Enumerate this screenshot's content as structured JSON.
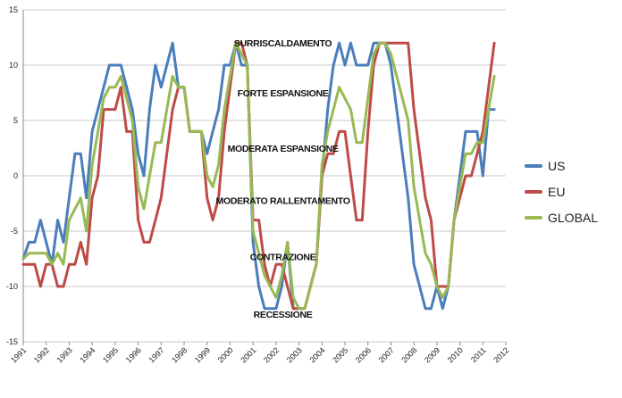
{
  "chart_data": {
    "type": "line",
    "title": "",
    "xlabel": "",
    "ylabel": "",
    "ylim": [
      -15,
      15
    ],
    "yticks": [
      -15,
      -10,
      -5,
      0,
      5,
      10,
      15
    ],
    "xlim": [
      1991,
      2012
    ],
    "xticks": [
      "1991",
      "1992",
      "1993",
      "1994",
      "1995",
      "1996",
      "1997",
      "1998",
      "1999",
      "2000",
      "2001",
      "2002",
      "2003",
      "2004",
      "2005",
      "2006",
      "2007",
      "2008",
      "2009",
      "2010",
      "2011",
      "2012"
    ],
    "grid": "horizontal",
    "legend_position": "right",
    "annotations": [
      {
        "text": "SURRISCALDAMENTO",
        "y": 12
      },
      {
        "text": "FORTE ESPANSIONE",
        "y": 7.5
      },
      {
        "text": "MODERATA ESPANSIONE",
        "y": 2.5
      },
      {
        "text": "MODERATO RALLENTAMENTO",
        "y": -2.2
      },
      {
        "text": "CONTRAZIONE",
        "y": -7.3
      },
      {
        "text": "RECESSIONE",
        "y": -12.5
      }
    ],
    "series": [
      {
        "name": "US",
        "color": "#4A7EBB",
        "points": [
          [
            1991.0,
            -7.5
          ],
          [
            1991.25,
            -6
          ],
          [
            1991.5,
            -6
          ],
          [
            1991.75,
            -4
          ],
          [
            1992.0,
            -6
          ],
          [
            1992.25,
            -8
          ],
          [
            1992.5,
            -4
          ],
          [
            1992.75,
            -6
          ],
          [
            1993.0,
            -2
          ],
          [
            1993.25,
            2
          ],
          [
            1993.5,
            2
          ],
          [
            1993.75,
            -2
          ],
          [
            1994.0,
            4
          ],
          [
            1994.25,
            6
          ],
          [
            1994.5,
            8
          ],
          [
            1994.75,
            10
          ],
          [
            1995.0,
            10
          ],
          [
            1995.25,
            10
          ],
          [
            1995.5,
            8
          ],
          [
            1995.75,
            6
          ],
          [
            1996.0,
            2
          ],
          [
            1996.25,
            0
          ],
          [
            1996.5,
            6
          ],
          [
            1996.75,
            10
          ],
          [
            1997.0,
            8
          ],
          [
            1997.25,
            10
          ],
          [
            1997.5,
            12
          ],
          [
            1997.75,
            8
          ],
          [
            1998.0,
            8
          ],
          [
            1998.25,
            4
          ],
          [
            1998.5,
            4
          ],
          [
            1998.75,
            4
          ],
          [
            1999.0,
            2
          ],
          [
            1999.25,
            4
          ],
          [
            1999.5,
            6
          ],
          [
            1999.75,
            10
          ],
          [
            2000.0,
            10
          ],
          [
            2000.25,
            12
          ],
          [
            2000.5,
            10
          ],
          [
            2000.75,
            10
          ],
          [
            2001.0,
            -6
          ],
          [
            2001.25,
            -10
          ],
          [
            2001.5,
            -12
          ],
          [
            2001.75,
            -12
          ],
          [
            2002.0,
            -12
          ],
          [
            2002.25,
            -10
          ],
          [
            2002.5,
            -6
          ],
          [
            2002.75,
            -12
          ],
          [
            2003.0,
            -12
          ],
          [
            2003.25,
            -12
          ],
          [
            2003.5,
            -10
          ],
          [
            2003.75,
            -8
          ],
          [
            2004.0,
            0
          ],
          [
            2004.25,
            6
          ],
          [
            2004.5,
            10
          ],
          [
            2004.75,
            12
          ],
          [
            2005.0,
            10
          ],
          [
            2005.25,
            12
          ],
          [
            2005.5,
            10
          ],
          [
            2005.75,
            10
          ],
          [
            2006.0,
            10
          ],
          [
            2006.25,
            12
          ],
          [
            2006.5,
            12
          ],
          [
            2006.75,
            12
          ],
          [
            2007.0,
            10
          ],
          [
            2007.25,
            6
          ],
          [
            2007.5,
            2
          ],
          [
            2007.75,
            -2
          ],
          [
            2008.0,
            -8
          ],
          [
            2008.25,
            -10
          ],
          [
            2008.5,
            -12
          ],
          [
            2008.75,
            -12
          ],
          [
            2009.0,
            -10
          ],
          [
            2009.25,
            -12
          ],
          [
            2009.5,
            -10
          ],
          [
            2009.75,
            -4
          ],
          [
            2010.0,
            0
          ],
          [
            2010.25,
            4
          ],
          [
            2010.5,
            4
          ],
          [
            2010.75,
            4
          ],
          [
            2011.0,
            0
          ],
          [
            2011.25,
            6
          ],
          [
            2011.5,
            6
          ]
        ]
      },
      {
        "name": "EU",
        "color": "#BE4B48",
        "points": [
          [
            1991.0,
            -8
          ],
          [
            1991.25,
            -8
          ],
          [
            1991.5,
            -8
          ],
          [
            1991.75,
            -10
          ],
          [
            1992.0,
            -8
          ],
          [
            1992.25,
            -8
          ],
          [
            1992.5,
            -10
          ],
          [
            1992.75,
            -10
          ],
          [
            1993.0,
            -8
          ],
          [
            1993.25,
            -8
          ],
          [
            1993.5,
            -6
          ],
          [
            1993.75,
            -8
          ],
          [
            1994.0,
            -2
          ],
          [
            1994.25,
            0
          ],
          [
            1994.5,
            6
          ],
          [
            1994.75,
            6
          ],
          [
            1995.0,
            6
          ],
          [
            1995.25,
            8
          ],
          [
            1995.5,
            4
          ],
          [
            1995.75,
            4
          ],
          [
            1996.0,
            -4
          ],
          [
            1996.25,
            -6
          ],
          [
            1996.5,
            -6
          ],
          [
            1996.75,
            -4
          ],
          [
            1997.0,
            -2
          ],
          [
            1997.25,
            2
          ],
          [
            1997.5,
            6
          ],
          [
            1997.75,
            8
          ],
          [
            1998.0,
            8
          ],
          [
            1998.25,
            4
          ],
          [
            1998.5,
            4
          ],
          [
            1998.75,
            4
          ],
          [
            1999.0,
            -2
          ],
          [
            1999.25,
            -4
          ],
          [
            1999.5,
            -2
          ],
          [
            1999.75,
            4
          ],
          [
            2000.0,
            8
          ],
          [
            2000.25,
            12
          ],
          [
            2000.5,
            12
          ],
          [
            2000.75,
            10
          ],
          [
            2001.0,
            -4
          ],
          [
            2001.25,
            -4
          ],
          [
            2001.5,
            -8
          ],
          [
            2001.75,
            -10
          ],
          [
            2002.0,
            -8
          ],
          [
            2002.25,
            -8
          ],
          [
            2002.5,
            -10
          ],
          [
            2002.75,
            -12
          ],
          [
            2003.0,
            -12
          ],
          [
            2003.25,
            -12
          ],
          [
            2003.5,
            -10
          ],
          [
            2003.75,
            -8
          ],
          [
            2004.0,
            0
          ],
          [
            2004.25,
            2
          ],
          [
            2004.5,
            2
          ],
          [
            2004.75,
            4
          ],
          [
            2005.0,
            4
          ],
          [
            2005.25,
            0
          ],
          [
            2005.5,
            -4
          ],
          [
            2005.75,
            -4
          ],
          [
            2006.0,
            4
          ],
          [
            2006.25,
            10
          ],
          [
            2006.5,
            12
          ],
          [
            2006.75,
            12
          ],
          [
            2007.0,
            12
          ],
          [
            2007.25,
            12
          ],
          [
            2007.5,
            12
          ],
          [
            2007.75,
            12
          ],
          [
            2008.0,
            6
          ],
          [
            2008.25,
            2
          ],
          [
            2008.5,
            -2
          ],
          [
            2008.75,
            -4
          ],
          [
            2009.0,
            -10
          ],
          [
            2009.25,
            -10
          ],
          [
            2009.5,
            -10
          ],
          [
            2009.75,
            -4
          ],
          [
            2010.0,
            -2
          ],
          [
            2010.25,
            0
          ],
          [
            2010.5,
            0
          ],
          [
            2010.75,
            2
          ],
          [
            2011.0,
            4
          ],
          [
            2011.25,
            8
          ],
          [
            2011.5,
            12
          ]
        ]
      },
      {
        "name": "GLOBAL",
        "color": "#98B954",
        "points": [
          [
            1991.0,
            -7.5
          ],
          [
            1991.25,
            -7
          ],
          [
            1991.5,
            -7
          ],
          [
            1991.75,
            -7
          ],
          [
            1992.0,
            -7
          ],
          [
            1992.25,
            -8
          ],
          [
            1992.5,
            -7
          ],
          [
            1992.75,
            -8
          ],
          [
            1993.0,
            -4
          ],
          [
            1993.25,
            -3
          ],
          [
            1993.5,
            -2
          ],
          [
            1993.75,
            -5
          ],
          [
            1994.0,
            1
          ],
          [
            1994.25,
            4
          ],
          [
            1994.5,
            7
          ],
          [
            1994.75,
            8
          ],
          [
            1995.0,
            8
          ],
          [
            1995.25,
            9
          ],
          [
            1995.5,
            7
          ],
          [
            1995.75,
            5
          ],
          [
            1996.0,
            -1
          ],
          [
            1996.25,
            -3
          ],
          [
            1996.5,
            0
          ],
          [
            1996.75,
            3
          ],
          [
            1997.0,
            3
          ],
          [
            1997.25,
            6
          ],
          [
            1997.5,
            9
          ],
          [
            1997.75,
            8
          ],
          [
            1998.0,
            8
          ],
          [
            1998.25,
            4
          ],
          [
            1998.5,
            4
          ],
          [
            1998.75,
            4
          ],
          [
            1999.0,
            0
          ],
          [
            1999.25,
            -1
          ],
          [
            1999.5,
            1
          ],
          [
            1999.75,
            6
          ],
          [
            2000.0,
            9
          ],
          [
            2000.25,
            12
          ],
          [
            2000.5,
            11
          ],
          [
            2000.75,
            10
          ],
          [
            2001.0,
            -5
          ],
          [
            2001.25,
            -7
          ],
          [
            2001.5,
            -9
          ],
          [
            2001.75,
            -10
          ],
          [
            2002.0,
            -11
          ],
          [
            2002.25,
            -9
          ],
          [
            2002.5,
            -6
          ],
          [
            2002.75,
            -11
          ],
          [
            2003.0,
            -12
          ],
          [
            2003.25,
            -12
          ],
          [
            2003.5,
            -10
          ],
          [
            2003.75,
            -8
          ],
          [
            2004.0,
            1
          ],
          [
            2004.25,
            4
          ],
          [
            2004.5,
            6
          ],
          [
            2004.75,
            8
          ],
          [
            2005.0,
            7
          ],
          [
            2005.25,
            6
          ],
          [
            2005.5,
            3
          ],
          [
            2005.75,
            3
          ],
          [
            2006.0,
            7
          ],
          [
            2006.25,
            11
          ],
          [
            2006.5,
            12
          ],
          [
            2006.75,
            12
          ],
          [
            2007.0,
            11
          ],
          [
            2007.25,
            9
          ],
          [
            2007.5,
            7
          ],
          [
            2007.75,
            5
          ],
          [
            2008.0,
            -1
          ],
          [
            2008.25,
            -4
          ],
          [
            2008.5,
            -7
          ],
          [
            2008.75,
            -8
          ],
          [
            2009.0,
            -10
          ],
          [
            2009.25,
            -11
          ],
          [
            2009.5,
            -10
          ],
          [
            2009.75,
            -4
          ],
          [
            2010.0,
            -1
          ],
          [
            2010.25,
            2
          ],
          [
            2010.5,
            2
          ],
          [
            2010.75,
            3
          ],
          [
            2011.0,
            3
          ],
          [
            2011.25,
            6
          ],
          [
            2011.5,
            9
          ]
        ]
      }
    ]
  }
}
